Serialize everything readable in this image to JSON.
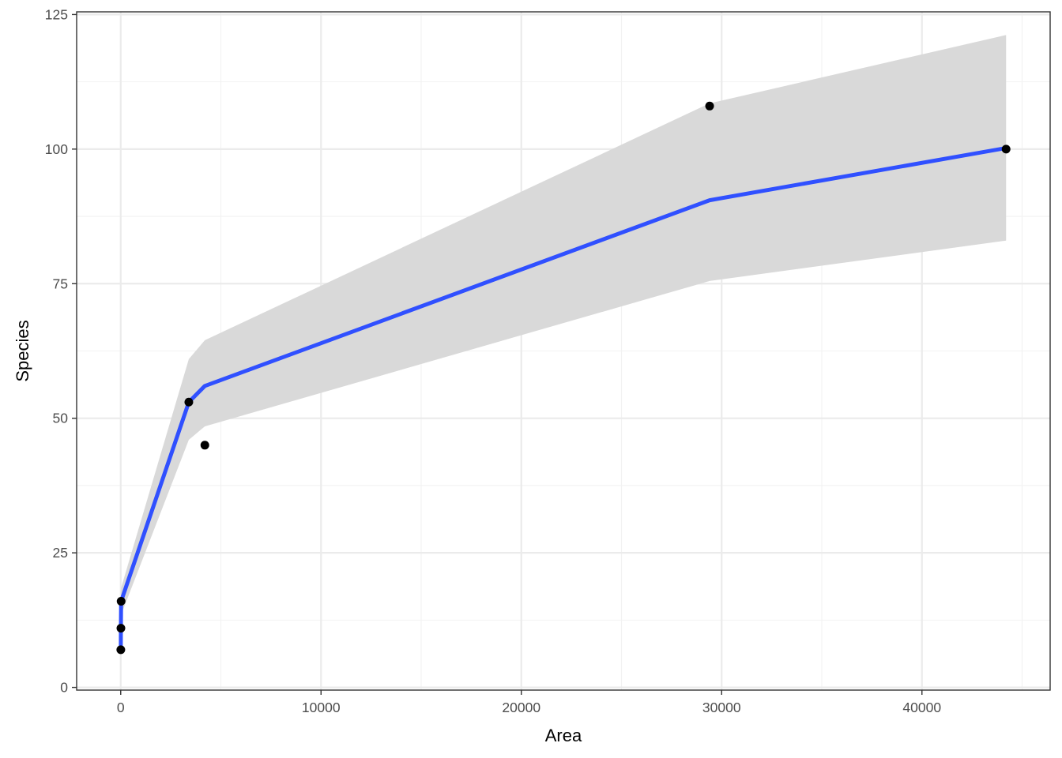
{
  "chart_data": {
    "type": "scatter",
    "title": "",
    "xlabel": "Area",
    "ylabel": "Species",
    "xlim": [
      -2200,
      46400
    ],
    "ylim": [
      -0.5,
      125.5
    ],
    "x_ticks": [
      0,
      10000,
      20000,
      30000,
      40000
    ],
    "x_tick_labels": [
      "0",
      "10000",
      "20000",
      "30000",
      "40000"
    ],
    "x_minor_ticks": [
      5000,
      15000,
      25000,
      35000,
      45000
    ],
    "y_ticks": [
      0,
      25,
      50,
      75,
      100,
      125
    ],
    "y_tick_labels": [
      "0",
      "25",
      "50",
      "75",
      "100",
      "125"
    ],
    "y_minor_ticks": [
      12.5,
      37.5,
      62.5,
      87.5,
      112.5
    ],
    "grid": true,
    "points": [
      {
        "x": 5,
        "y": 7
      },
      {
        "x": 10,
        "y": 11
      },
      {
        "x": 20,
        "y": 16
      },
      {
        "x": 3400,
        "y": 53
      },
      {
        "x": 4200,
        "y": 45
      },
      {
        "x": 29400,
        "y": 108
      },
      {
        "x": 44200,
        "y": 100
      }
    ],
    "fit_line": {
      "x": [
        5,
        10,
        20,
        3400,
        4200,
        29400,
        44200
      ],
      "y": [
        7.5,
        11.5,
        16,
        53,
        56,
        90.5,
        100.2
      ]
    },
    "confidence_band": {
      "x": [
        5,
        10,
        20,
        3400,
        4200,
        29400,
        44200
      ],
      "upper": [
        9.5,
        13.5,
        18.5,
        61,
        64.5,
        108.5,
        121.2
      ],
      "lower": [
        5.5,
        9.5,
        13.5,
        46,
        48.5,
        75.5,
        83
      ]
    },
    "colors": {
      "points": "#000000",
      "fit_line": "#3050ff",
      "band": "#d9d9d9",
      "grid_major": "#ebebeb",
      "grid_minor": "#f2f2f2",
      "panel_border": "#333333",
      "axis_text": "#4d4d4d"
    }
  }
}
